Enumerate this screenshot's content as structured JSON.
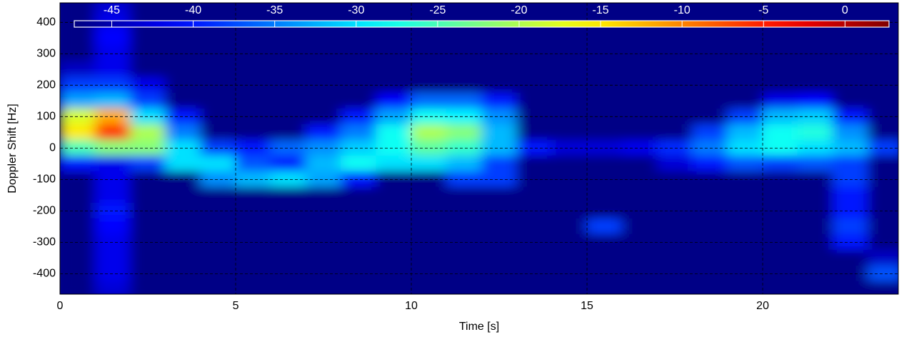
{
  "chart_data": {
    "type": "heatmap",
    "xlabel": "Time [s]",
    "ylabel": "Doppler Shift [Hz]",
    "xlim": [
      0,
      23.86
    ],
    "ylim": [
      -465,
      462
    ],
    "xticks": [
      0,
      5,
      10,
      15,
      20
    ],
    "yticks": [
      -400,
      -300,
      -200,
      -100,
      0,
      100,
      200,
      300,
      400
    ],
    "grid": true,
    "colormap": "jet",
    "clim": [
      -47.3,
      2.7
    ],
    "cticks": [
      -45,
      -40,
      -35,
      -30,
      -25,
      -20,
      -15,
      -10,
      -5,
      0
    ],
    "x": [
      0.5,
      1.5,
      2.5,
      3.5,
      4.5,
      5.5,
      6.5,
      7.5,
      8.5,
      9.5,
      10.5,
      11.5,
      12.5,
      13.5,
      14.5,
      15.5,
      16.5,
      17.5,
      18.5,
      19.5,
      20.5,
      21.5,
      22.5,
      23.5
    ],
    "y": [
      450,
      400,
      350,
      300,
      250,
      200,
      150,
      100,
      50,
      0,
      -50,
      -100,
      -150,
      -200,
      -250,
      -300,
      -350,
      -400,
      -450
    ],
    "z": [
      [
        -47,
        -43,
        -47,
        -47,
        -47,
        -47,
        -47,
        -47,
        -47,
        -47,
        -47,
        -47,
        -47,
        -47,
        -47,
        -47,
        -47,
        -47,
        -47,
        -47,
        -47,
        -47,
        -47,
        -47
      ],
      [
        -47,
        -42,
        -47,
        -47,
        -47,
        -47,
        -47,
        -47,
        -47,
        -47,
        -47,
        -47,
        -47,
        -47,
        -47,
        -47,
        -47,
        -47,
        -47,
        -47,
        -47,
        -47,
        -47,
        -47
      ],
      [
        -47,
        -41,
        -47,
        -47,
        -47,
        -47,
        -47,
        -47,
        -47,
        -47,
        -47,
        -47,
        -47,
        -47,
        -47,
        -47,
        -47,
        -47,
        -47,
        -47,
        -47,
        -47,
        -47,
        -47
      ],
      [
        -47,
        -42,
        -47,
        -47,
        -47,
        -47,
        -47,
        -47,
        -47,
        -47,
        -47,
        -47,
        -47,
        -47,
        -47,
        -47,
        -47,
        -47,
        -47,
        -47,
        -47,
        -47,
        -47,
        -47
      ],
      [
        -44,
        -42,
        -47,
        -47,
        -47,
        -47,
        -47,
        -47,
        -47,
        -47,
        -47,
        -47,
        -47,
        -47,
        -47,
        -47,
        -47,
        -47,
        -47,
        -47,
        -47,
        -47,
        -47,
        -47
      ],
      [
        -38,
        -38,
        -42,
        -47,
        -47,
        -47,
        -47,
        -47,
        -47,
        -47,
        -47,
        -47,
        -47,
        -47,
        -47,
        -47,
        -47,
        -47,
        -47,
        -47,
        -47,
        -47,
        -47,
        -47
      ],
      [
        -33,
        -32,
        -38,
        -47,
        -47,
        -47,
        -47,
        -47,
        -47,
        -41,
        -36,
        -36,
        -40,
        -47,
        -47,
        -47,
        -47,
        -47,
        -47,
        -47,
        -42,
        -41,
        -47,
        -47
      ],
      [
        -18,
        -12,
        -30,
        -40,
        -47,
        -47,
        -47,
        -47,
        -40,
        -33,
        -28,
        -29,
        -34,
        -47,
        -47,
        -47,
        -47,
        -47,
        -47,
        -38,
        -32,
        -31,
        -40,
        -47
      ],
      [
        -15,
        -6,
        -20,
        -35,
        -47,
        -47,
        -47,
        -40,
        -35,
        -28,
        -20,
        -22,
        -32,
        -47,
        -47,
        -47,
        -47,
        -47,
        -38,
        -32,
        -28,
        -27,
        -34,
        -47
      ],
      [
        -25,
        -22,
        -22,
        -30,
        -38,
        -40,
        -36,
        -34,
        -31,
        -28,
        -24,
        -26,
        -32,
        -40,
        -43,
        -43,
        -42,
        -39,
        -35,
        -30,
        -28,
        -30,
        -32,
        -38
      ],
      [
        -40,
        -42,
        -38,
        -30,
        -30,
        -37,
        -40,
        -32,
        -28,
        -30,
        -30,
        -32,
        -38,
        -47,
        -47,
        -47,
        -47,
        -43,
        -40,
        -37,
        -38,
        -37,
        -38,
        -47
      ],
      [
        -47,
        -42,
        -47,
        -47,
        -34,
        -32,
        -30,
        -33,
        -40,
        -47,
        -47,
        -38,
        -38,
        -47,
        -47,
        -47,
        -47,
        -47,
        -47,
        -47,
        -47,
        -47,
        -38,
        -47
      ],
      [
        -47,
        -42,
        -47,
        -47,
        -47,
        -47,
        -47,
        -47,
        -47,
        -47,
        -47,
        -47,
        -47,
        -47,
        -47,
        -47,
        -47,
        -47,
        -47,
        -47,
        -47,
        -47,
        -40,
        -47
      ],
      [
        -47,
        -40,
        -47,
        -47,
        -47,
        -47,
        -47,
        -47,
        -47,
        -47,
        -47,
        -47,
        -47,
        -47,
        -47,
        -47,
        -47,
        -47,
        -47,
        -47,
        -47,
        -47,
        -40,
        -47
      ],
      [
        -47,
        -41,
        -47,
        -47,
        -47,
        -47,
        -47,
        -47,
        -47,
        -47,
        -47,
        -47,
        -47,
        -47,
        -47,
        -38,
        -47,
        -47,
        -47,
        -47,
        -47,
        -47,
        -38,
        -47
      ],
      [
        -47,
        -42,
        -47,
        -47,
        -47,
        -47,
        -47,
        -47,
        -47,
        -47,
        -47,
        -47,
        -47,
        -47,
        -47,
        -47,
        -47,
        -47,
        -47,
        -47,
        -47,
        -47,
        -40,
        -47
      ],
      [
        -47,
        -42,
        -47,
        -47,
        -47,
        -47,
        -47,
        -47,
        -47,
        -47,
        -47,
        -47,
        -47,
        -47,
        -47,
        -47,
        -47,
        -47,
        -47,
        -47,
        -47,
        -47,
        -47,
        -44
      ],
      [
        -47,
        -42,
        -47,
        -47,
        -47,
        -47,
        -47,
        -47,
        -47,
        -47,
        -47,
        -47,
        -47,
        -47,
        -47,
        -47,
        -47,
        -47,
        -47,
        -47,
        -47,
        -47,
        -47,
        -37
      ],
      [
        -47,
        -43,
        -47,
        -47,
        -47,
        -47,
        -47,
        -47,
        -47,
        -47,
        -47,
        -47,
        -47,
        -47,
        -47,
        -47,
        -47,
        -47,
        -47,
        -47,
        -47,
        -47,
        -47,
        -47
      ]
    ]
  }
}
